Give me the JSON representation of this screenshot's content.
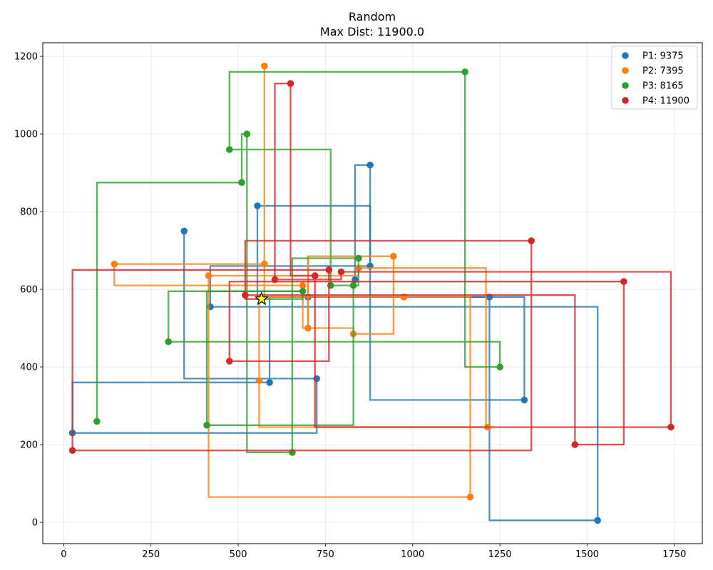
{
  "chart_data": {
    "type": "line",
    "title": "Random",
    "subtitle": "Max Dist: 11900.0",
    "xlabel": "",
    "ylabel": "",
    "xlim": [
      -60,
      1830
    ],
    "ylim": [
      -55,
      1235
    ],
    "xticks": [
      0,
      250,
      500,
      750,
      1000,
      1250,
      1500,
      1750
    ],
    "yticks": [
      0,
      200,
      400,
      600,
      800,
      1000,
      1200
    ],
    "xtick_labels": [
      "0",
      "250",
      "500",
      "750",
      "1000",
      "1250",
      "1500",
      "1750"
    ],
    "ytick_labels": [
      "0",
      "200",
      "400",
      "600",
      "800",
      "1000",
      "1200"
    ],
    "grid": true,
    "legend_position": "top-right",
    "marker": {
      "x": 567,
      "y": 575,
      "shape": "star",
      "color": "#ffff00"
    },
    "series": [
      {
        "name": "P1: 9375",
        "color": "#1f77b4",
        "points": [
          [
            567,
            575
          ],
          [
            880,
            575
          ],
          [
            880,
            315
          ],
          [
            1320,
            315
          ],
          [
            1320,
            575
          ],
          [
            720,
            575
          ],
          [
            720,
            370
          ],
          [
            345,
            370
          ],
          [
            345,
            750
          ],
          [
            345,
            750
          ],
          [
            555,
            815
          ],
          [
            555,
            580
          ],
          [
            700,
            580
          ],
          [
            880,
            580
          ],
          [
            880,
            660
          ],
          [
            420,
            660
          ],
          [
            420,
            555
          ],
          [
            1530,
            555
          ],
          [
            1530,
            5
          ],
          [
            1220,
            5
          ],
          [
            1220,
            580
          ],
          [
            700,
            580
          ],
          [
            700,
            415
          ],
          [
            590,
            415
          ],
          [
            590,
            360
          ],
          [
            25,
            360
          ],
          [
            25,
            230
          ],
          [
            725,
            230
          ],
          [
            725,
            370
          ],
          [
            835,
            625
          ],
          [
            835,
            920
          ],
          [
            878,
            920
          ]
        ],
        "path": [
          [
            567,
            575
          ],
          [
            555,
            575
          ],
          [
            555,
            815
          ],
          [
            878,
            815
          ],
          [
            878,
            660
          ],
          [
            420,
            660
          ],
          [
            420,
            555
          ],
          [
            1530,
            555
          ],
          [
            1530,
            5
          ],
          [
            1220,
            5
          ],
          [
            1220,
            580
          ],
          [
            700,
            580
          ],
          [
            700,
            580
          ],
          [
            590,
            580
          ],
          [
            590,
            360
          ],
          [
            25,
            360
          ],
          [
            25,
            230
          ],
          [
            725,
            230
          ],
          [
            725,
            370
          ],
          [
            345,
            370
          ],
          [
            345,
            750
          ]
        ],
        "dots": [
          [
            878,
            920
          ],
          [
            555,
            815
          ],
          [
            345,
            750
          ],
          [
            878,
            660
          ],
          [
            835,
            625
          ],
          [
            420,
            555
          ],
          [
            1220,
            580
          ],
          [
            700,
            580
          ],
          [
            590,
            360
          ],
          [
            725,
            370
          ],
          [
            1320,
            315
          ],
          [
            25,
            230
          ],
          [
            1530,
            5
          ]
        ],
        "extra_paths": [
          [
            [
              835,
              625
            ],
            [
              835,
              920
            ],
            [
              878,
              920
            ],
            [
              878,
              660
            ]
          ],
          [
            [
              700,
              580
            ],
            [
              1320,
              580
            ],
            [
              1320,
              315
            ],
            [
              878,
              315
            ],
            [
              878,
              660
            ]
          ]
        ]
      },
      {
        "name": "P2: 7395",
        "color": "#ff7f0e",
        "path": [
          [
            567,
            575
          ],
          [
            575,
            575
          ],
          [
            575,
            1175
          ],
          [
            575,
            665
          ],
          [
            145,
            665
          ],
          [
            145,
            610
          ],
          [
            685,
            610
          ],
          [
            685,
            500
          ],
          [
            830,
            500
          ],
          [
            830,
            485
          ],
          [
            945,
            485
          ],
          [
            945,
            685
          ],
          [
            700,
            685
          ],
          [
            700,
            500
          ],
          [
            700,
            500
          ]
        ],
        "dots": [
          [
            575,
            1175
          ],
          [
            575,
            665
          ],
          [
            145,
            665
          ],
          [
            685,
            610
          ],
          [
            700,
            500
          ],
          [
            830,
            485
          ],
          [
            945,
            685
          ],
          [
            845,
            655
          ],
          [
            415,
            635
          ],
          [
            975,
            580
          ],
          [
            560,
            365
          ],
          [
            1215,
            245
          ],
          [
            1165,
            65
          ]
        ],
        "extra_paths": [
          [
            [
              845,
              655
            ],
            [
              1210,
              655
            ],
            [
              1210,
              245
            ],
            [
              560,
              245
            ],
            [
              560,
              365
            ],
            [
              560,
              580
            ],
            [
              1165,
              580
            ],
            [
              1165,
              65
            ],
            [
              415,
              65
            ],
            [
              415,
              635
            ],
            [
              845,
              635
            ],
            [
              845,
              655
            ]
          ],
          [
            [
              700,
              500
            ],
            [
              700,
              685
            ]
          ]
        ]
      },
      {
        "name": "P3: 8165",
        "color": "#2ca02c",
        "path": [
          [
            567,
            575
          ],
          [
            685,
            575
          ],
          [
            685,
            595
          ],
          [
            300,
            595
          ],
          [
            300,
            465
          ],
          [
            1250,
            465
          ],
          [
            1250,
            400
          ],
          [
            1150,
            400
          ],
          [
            1150,
            1160
          ],
          [
            475,
            1160
          ],
          [
            475,
            960
          ],
          [
            765,
            960
          ],
          [
            765,
            610
          ],
          [
            845,
            610
          ],
          [
            845,
            680
          ],
          [
            655,
            680
          ],
          [
            655,
            180
          ],
          [
            525,
            180
          ],
          [
            525,
            1000
          ],
          [
            510,
            1000
          ],
          [
            510,
            875
          ],
          [
            95,
            875
          ],
          [
            95,
            260
          ]
        ],
        "dots": [
          [
            1150,
            1160
          ],
          [
            525,
            1000
          ],
          [
            475,
            960
          ],
          [
            510,
            875
          ],
          [
            845,
            680
          ],
          [
            685,
            595
          ],
          [
            765,
            610
          ],
          [
            830,
            610
          ],
          [
            300,
            465
          ],
          [
            1250,
            400
          ],
          [
            95,
            260
          ],
          [
            410,
            250
          ],
          [
            655,
            180
          ]
        ],
        "extra_paths": [
          [
            [
              410,
              250
            ],
            [
              410,
              595
            ],
            [
              685,
              595
            ]
          ],
          [
            [
              830,
              610
            ],
            [
              830,
              250
            ],
            [
              410,
              250
            ]
          ]
        ]
      },
      {
        "name": "P4: 11900",
        "color": "#d62728",
        "path": [
          [
            567,
            575
          ],
          [
            520,
            575
          ],
          [
            520,
            585
          ],
          [
            1465,
            585
          ],
          [
            1465,
            200
          ],
          [
            1605,
            200
          ],
          [
            1605,
            620
          ],
          [
            475,
            620
          ],
          [
            475,
            415
          ],
          [
            760,
            415
          ],
          [
            760,
            650
          ],
          [
            25,
            650
          ],
          [
            25,
            185
          ],
          [
            1340,
            185
          ],
          [
            1340,
            725
          ],
          [
            520,
            725
          ],
          [
            520,
            585
          ]
        ],
        "dots": [
          [
            650,
            1130
          ],
          [
            1340,
            725
          ],
          [
            760,
            650
          ],
          [
            795,
            645
          ],
          [
            720,
            635
          ],
          [
            605,
            625
          ],
          [
            1605,
            620
          ],
          [
            520,
            585
          ],
          [
            475,
            415
          ],
          [
            1465,
            200
          ],
          [
            25,
            185
          ],
          [
            1740,
            245
          ]
        ],
        "extra_paths": [
          [
            [
              650,
              1130
            ],
            [
              605,
              1130
            ],
            [
              605,
              625
            ],
            [
              795,
              625
            ],
            [
              795,
              645
            ],
            [
              1740,
              645
            ],
            [
              1740,
              245
            ],
            [
              720,
              245
            ],
            [
              720,
              635
            ],
            [
              650,
              635
            ],
            [
              650,
              1130
            ]
          ]
        ]
      }
    ]
  }
}
